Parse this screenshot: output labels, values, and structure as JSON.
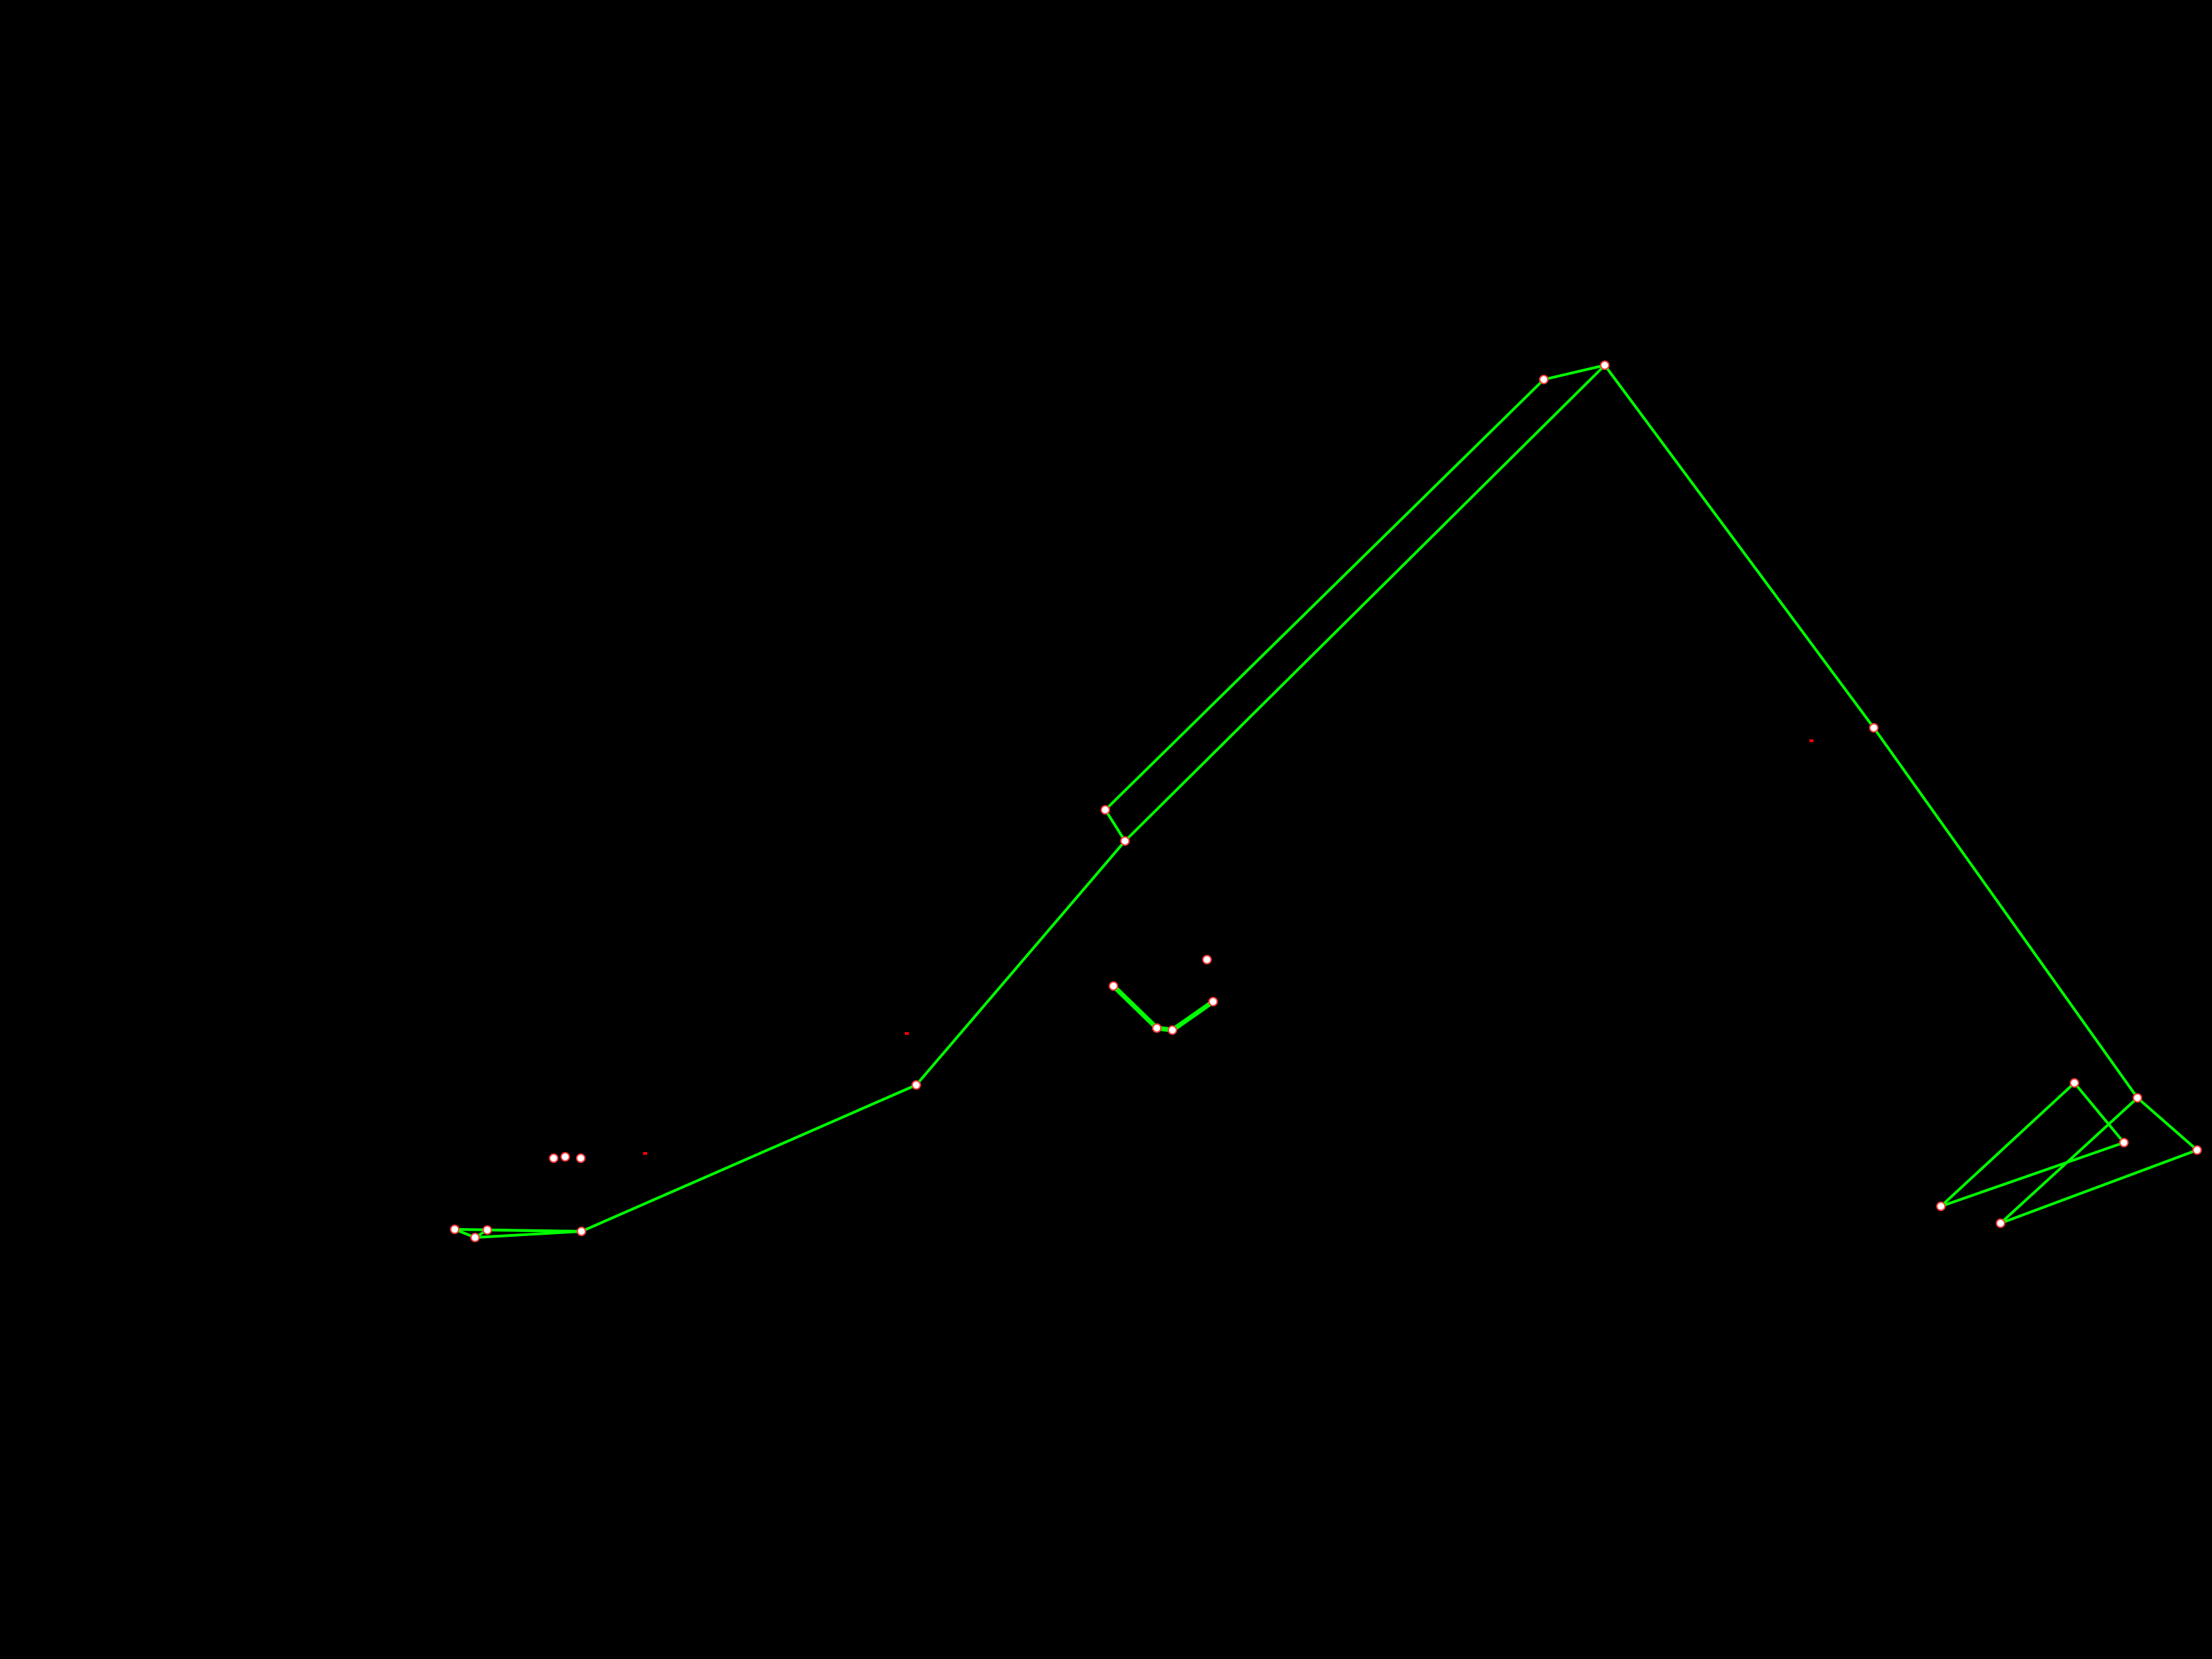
{
  "scene": {
    "background_color": "#000000",
    "bone_color": "#00ff00",
    "joint_fill_color": "#ffffff",
    "joint_outline_color": "#ff3b3b",
    "stray_point_color": "#ff0000"
  }
}
